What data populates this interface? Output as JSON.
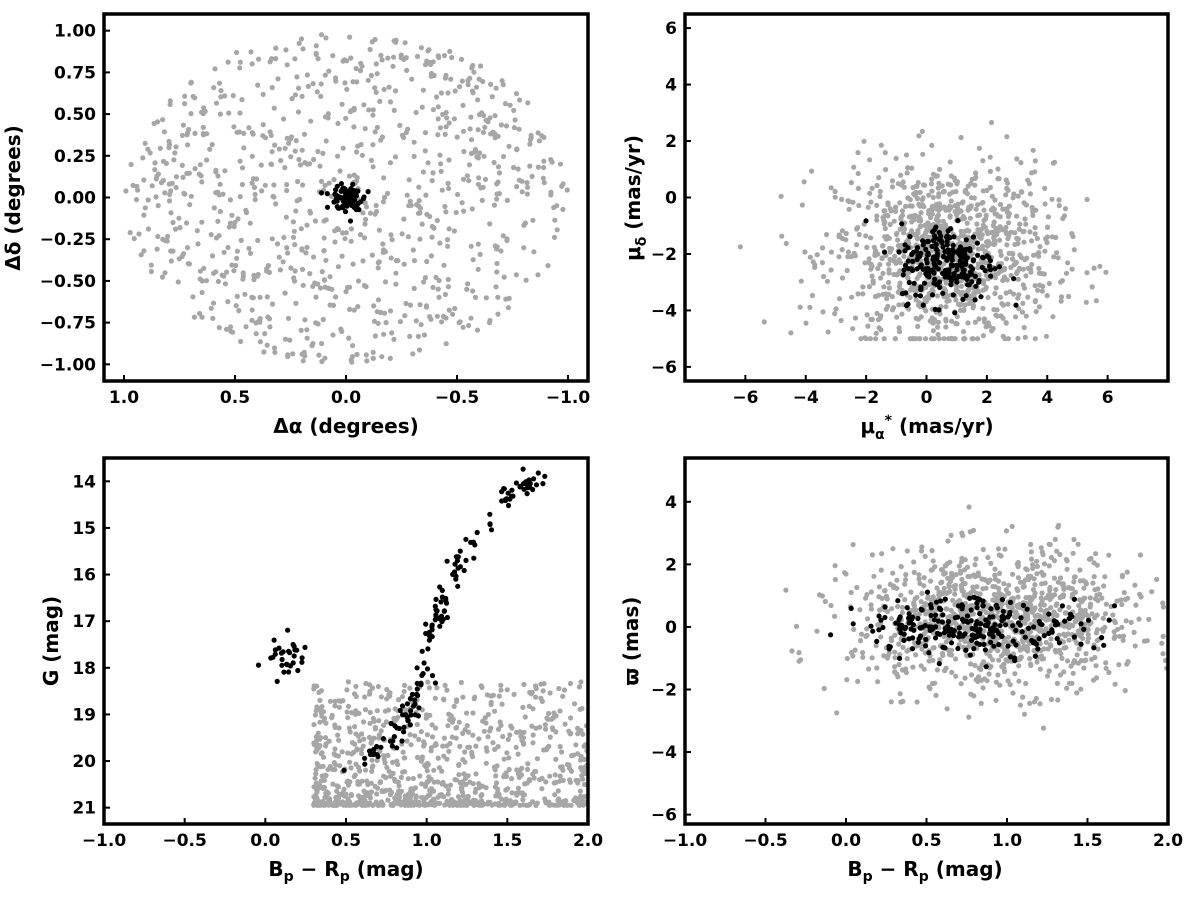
{
  "colors": {
    "field_points": "#a6a6a6",
    "member_points": "#000000",
    "frame": "#000000"
  },
  "chart_data": [
    {
      "type": "scatter",
      "panel": "top-left",
      "xlabel": "Δα (degrees)",
      "ylabel": "Δδ (degrees)",
      "xlim": [
        1.09,
        -1.09
      ],
      "ylim": [
        -1.1,
        1.1
      ],
      "x_inverted": true,
      "xticks": [
        1.0,
        0.5,
        0.0,
        -0.5,
        -1.0
      ],
      "xtick_labels": [
        "1.0",
        "0.5",
        "0.0",
        "−0.5",
        "−1.0"
      ],
      "yticks": [
        1.0,
        0.75,
        0.5,
        0.25,
        0.0,
        -0.25,
        -0.5,
        -0.75,
        -1.0
      ],
      "ytick_labels": [
        "1.00",
        "0.75",
        "0.50",
        "0.25",
        "0.00",
        "−0.25",
        "−0.50",
        "−0.75",
        "−1.00"
      ],
      "grid": false,
      "series": [
        {
          "role": "field",
          "description": "gray points uniformly filling a circle of radius 1 degree",
          "distribution": {
            "shape": "disk",
            "center": [
              0,
              0
            ],
            "radius": 1.0,
            "n": 900
          }
        },
        {
          "role": "members",
          "description": "black points tightly clustered at the center",
          "distribution": {
            "shape": "gaussian",
            "center": [
              0,
              0
            ],
            "sigma": [
              0.035,
              0.035
            ],
            "n": 90
          }
        }
      ]
    },
    {
      "type": "scatter",
      "panel": "top-right",
      "xlabel": "μ_α* (mas/yr)",
      "ylabel": "μ_δ (mas/yr)",
      "xlim": [
        -8,
        8
      ],
      "ylim": [
        -6.5,
        6.5
      ],
      "xticks": [
        -6,
        -4,
        -2,
        0,
        2,
        4,
        6
      ],
      "xtick_labels": [
        "−6",
        "−4",
        "−2",
        "0",
        "2",
        "4",
        "6"
      ],
      "yticks": [
        -6,
        -4,
        -2,
        0,
        2,
        4,
        6
      ],
      "ytick_labels": [
        "−6",
        "−4",
        "−2",
        "0",
        "2",
        "4",
        "6"
      ],
      "grid": false,
      "series": [
        {
          "role": "field",
          "description": "gray cloud centered near (0.5,-2), bounded below near -5",
          "distribution": {
            "shape": "gaussian",
            "center": [
              0.6,
              -2.0
            ],
            "sigma": [
              1.8,
              1.6
            ],
            "n": 1100,
            "clip_y": [
              -5.0,
              5.0
            ]
          }
        },
        {
          "role": "members",
          "description": "black points clustered near (0.7,-2.3)",
          "distribution": {
            "shape": "gaussian",
            "center": [
              0.7,
              -2.3
            ],
            "sigma": [
              0.8,
              0.7
            ],
            "n": 220
          }
        }
      ]
    },
    {
      "type": "scatter",
      "panel": "bottom-left",
      "xlabel": "B_p − R_p (mag)",
      "ylabel": "G (mag)",
      "xlim": [
        -1.0,
        2.0
      ],
      "ylim": [
        21.35,
        13.5
      ],
      "y_inverted": true,
      "xticks": [
        -1.0,
        -0.5,
        0.0,
        0.5,
        1.0,
        1.5,
        2.0
      ],
      "xtick_labels": [
        "−1.0",
        "−0.5",
        "0.0",
        "0.5",
        "1.0",
        "1.5",
        "2.0"
      ],
      "yticks": [
        21,
        20,
        19,
        18,
        17,
        16,
        15,
        14
      ],
      "ytick_labels": [
        "21",
        "20",
        "19",
        "18",
        "17",
        "16",
        "15",
        "14"
      ],
      "grid": false,
      "series": [
        {
          "role": "field",
          "description": "gray points concentrated at faint magnitudes 18.5-21",
          "distribution": {
            "shape": "band",
            "x_range": [
              0.3,
              2.0
            ],
            "y_range": [
              18.3,
              20.95
            ],
            "n": 900
          }
        },
        {
          "role": "members_main_sequence",
          "description": "black points along a main sequence from (0.5,20.1) to (1.7,13.85)",
          "distribution": {
            "shape": "polyline",
            "points": [
              [
                0.5,
                20.1
              ],
              [
                0.8,
                19.6
              ],
              [
                0.95,
                18.6
              ],
              [
                1.02,
                17.4
              ],
              [
                1.12,
                16.4
              ],
              [
                1.25,
                15.4
              ],
              [
                1.52,
                14.3
              ],
              [
                1.7,
                13.85
              ]
            ],
            "n": 150
          }
        },
        {
          "role": "members_hb",
          "description": "black clump of blue stragglers / horizontal branch",
          "distribution": {
            "shape": "gaussian",
            "center": [
              0.1,
              17.8
            ],
            "sigma": [
              0.06,
              0.2
            ],
            "n": 30
          }
        }
      ]
    },
    {
      "type": "scatter",
      "panel": "bottom-right",
      "xlabel": "B_p − R_p (mag)",
      "ylabel": "ϖ (mas)",
      "xlim": [
        -1.0,
        2.0
      ],
      "ylim": [
        -6.3,
        5.4
      ],
      "xticks": [
        -1.0,
        -0.5,
        0.0,
        0.5,
        1.0,
        1.5,
        2.0
      ],
      "xtick_labels": [
        "−1.0",
        "−0.5",
        "0.0",
        "0.5",
        "1.0",
        "1.5",
        "2.0"
      ],
      "yticks": [
        4,
        2,
        0,
        -2,
        -4,
        -6
      ],
      "ytick_labels": [
        "4",
        "2",
        "0",
        "−2",
        "−4",
        "−6"
      ],
      "grid": false,
      "series": [
        {
          "role": "field",
          "description": "gray points around parallax 0, widest spread near color 0.5-1.0",
          "distribution": {
            "shape": "gaussian",
            "center": [
              0.95,
              0.2
            ],
            "sigma": [
              0.45,
              1.1
            ],
            "n": 1100
          }
        },
        {
          "role": "members",
          "description": "black points concentrated at parallax ~0, color 0-1.3",
          "distribution": {
            "shape": "gaussian",
            "center": [
              0.8,
              0.05
            ],
            "sigma": [
              0.35,
              0.45
            ],
            "n": 240
          }
        }
      ]
    }
  ]
}
